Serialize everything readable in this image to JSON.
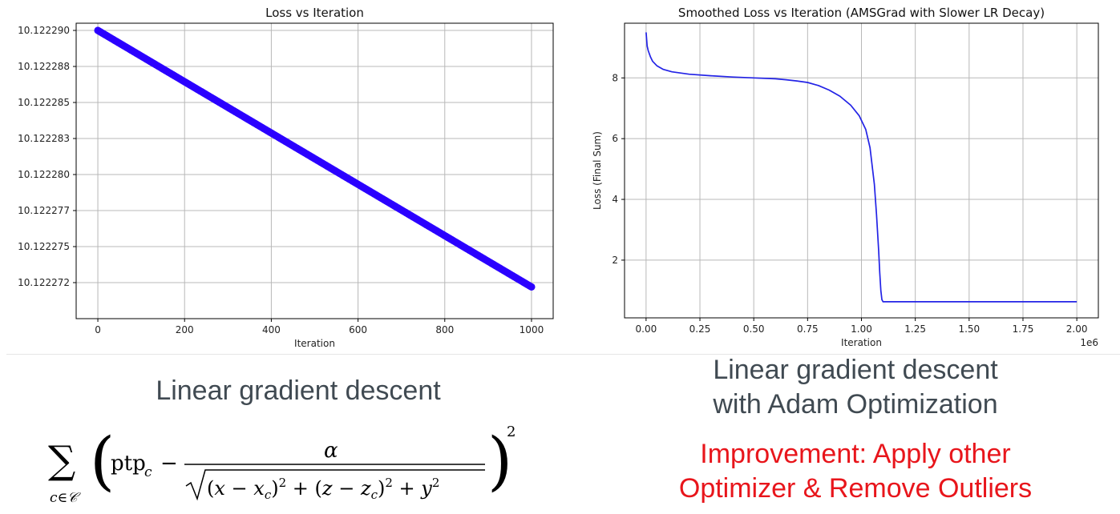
{
  "chart_data": [
    {
      "type": "scatter",
      "title": "Loss vs Iteration",
      "xlabel": "Iteration",
      "ylabel": "",
      "xlim": [
        -50,
        1050
      ],
      "ylim": [
        10.12227,
        10.1222905
      ],
      "xticks": [
        0,
        200,
        400,
        600,
        800,
        1000
      ],
      "yticks": [
        10.12229,
        10.1222875,
        10.122285,
        10.1222825,
        10.12228,
        10.1222775,
        10.122275,
        10.1222725
      ],
      "ytick_labels": [
        "10.122290",
        "10.122288",
        "10.122285",
        "10.122283",
        "10.122280",
        "10.122277",
        "10.122275",
        "10.122272"
      ],
      "grid": true,
      "color": "#2b00ff",
      "series": [
        {
          "x": [
            0,
            1000
          ],
          "values": [
            10.12229,
            10.1222722
          ]
        }
      ]
    },
    {
      "type": "line",
      "title": "Smoothed Loss vs Iteration (AMSGrad with Slower LR Decay)",
      "xlabel": "Iteration",
      "ylabel": "Loss (Final Sum)",
      "x_offset_text": "1e6",
      "xlim": [
        -0.1,
        2.1
      ],
      "ylim": [
        0.1,
        9.8
      ],
      "xticks": [
        0.0,
        0.25,
        0.5,
        0.75,
        1.0,
        1.25,
        1.5,
        1.75,
        2.0
      ],
      "xtick_labels": [
        "0.00",
        "0.25",
        "0.50",
        "0.75",
        "1.00",
        "1.25",
        "1.50",
        "1.75",
        "2.00"
      ],
      "yticks": [
        2,
        4,
        6,
        8
      ],
      "grid": true,
      "color": "#2323e6",
      "series": [
        {
          "x": [
            0.0,
            0.005,
            0.01,
            0.02,
            0.03,
            0.05,
            0.08,
            0.12,
            0.2,
            0.3,
            0.4,
            0.5,
            0.6,
            0.65,
            0.7,
            0.75,
            0.8,
            0.85,
            0.9,
            0.95,
            0.99,
            1.02,
            1.04,
            1.06,
            1.07,
            1.08,
            1.085,
            1.09,
            1.095,
            1.1,
            1.2,
            1.5,
            2.0
          ],
          "values": [
            9.5,
            9.05,
            8.9,
            8.7,
            8.55,
            8.4,
            8.28,
            8.2,
            8.12,
            8.07,
            8.03,
            8.0,
            7.97,
            7.94,
            7.9,
            7.85,
            7.75,
            7.6,
            7.4,
            7.1,
            6.75,
            6.3,
            5.7,
            4.5,
            3.5,
            2.3,
            1.6,
            1.0,
            0.7,
            0.63,
            0.63,
            0.63,
            0.63
          ]
        }
      ]
    }
  ],
  "captions": {
    "left": "Linear gradient descent",
    "right_line1": "Linear gradient descent",
    "right_line2": "with Adam Optimization",
    "improvement_line1": "Improvement: Apply other",
    "improvement_line2": "Optimizer & Remove Outliers"
  }
}
